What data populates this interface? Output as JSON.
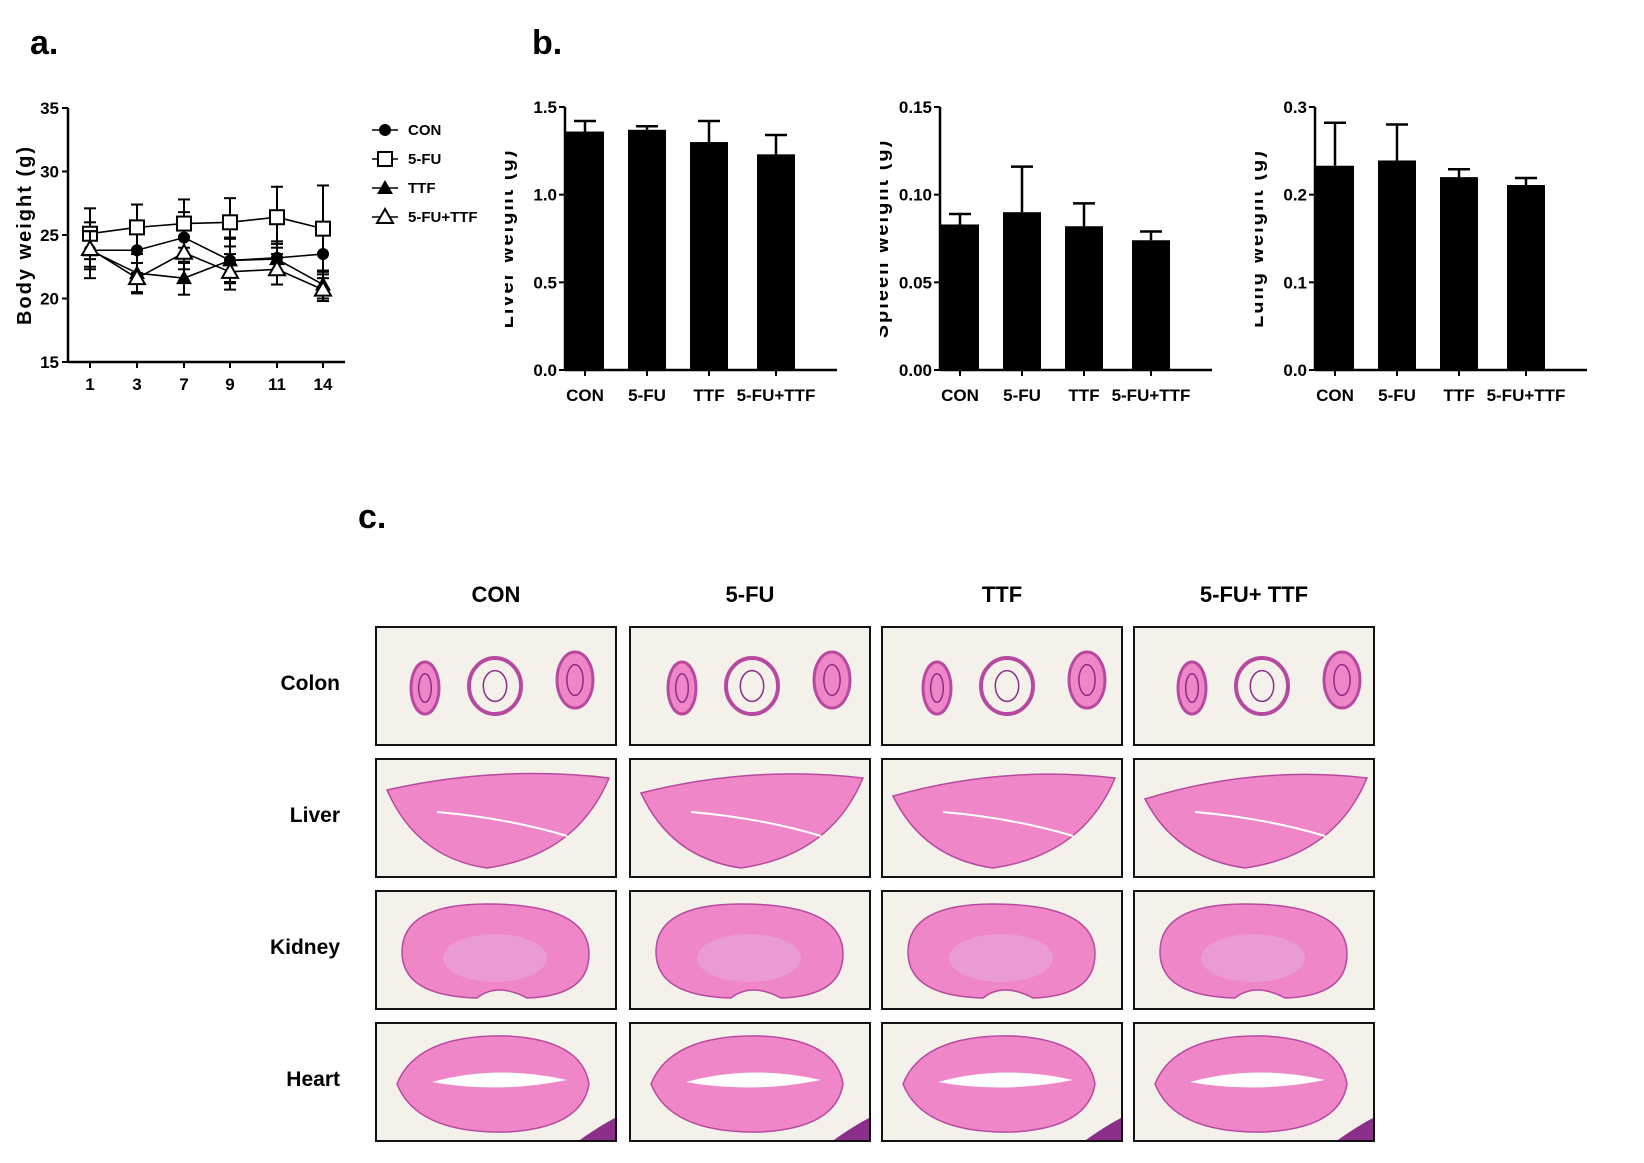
{
  "panels": {
    "a": "a.",
    "b": "b.",
    "c": "c."
  },
  "chart_data": [
    {
      "type": "line",
      "panel": "a",
      "ylabel": "Body weight (g)",
      "xlabel": "",
      "ylim": [
        15,
        35
      ],
      "yticks": [
        "15",
        "20",
        "25",
        "30",
        "35"
      ],
      "x": [
        "1",
        "3",
        "7",
        "9",
        "11",
        "14"
      ],
      "legend_position": "right",
      "series": [
        {
          "name": "CON",
          "marker": "filled-circle",
          "values": [
            23.8,
            23.8,
            24.8,
            23.0,
            23.2,
            23.5
          ],
          "errors": [
            2.2,
            1.8,
            2.0,
            1.7,
            1.3,
            1.6
          ]
        },
        {
          "name": "5-FU",
          "marker": "open-square",
          "values": [
            25.1,
            25.6,
            25.9,
            26.0,
            26.4,
            25.5
          ],
          "errors": [
            2.0,
            1.8,
            1.9,
            1.9,
            2.4,
            3.4
          ]
        },
        {
          "name": "TTF",
          "marker": "filled-triangle",
          "values": [
            23.8,
            22.0,
            21.6,
            23.0,
            23.1,
            21.1
          ],
          "errors": [
            1.5,
            1.5,
            1.3,
            1.8,
            1.2,
            1.1
          ]
        },
        {
          "name": "5-FU+TTF",
          "marker": "open-triangle",
          "values": [
            23.9,
            21.6,
            23.6,
            22.1,
            22.3,
            20.7
          ],
          "errors": [
            1.4,
            1.2,
            1.3,
            1.4,
            1.2,
            0.9
          ]
        }
      ]
    },
    {
      "type": "bar",
      "panel": "b",
      "ylabel": "Liver weight (g)",
      "categories": [
        "CON",
        "5-FU",
        "TTF",
        "5-FU+TTF"
      ],
      "values": [
        1.36,
        1.37,
        1.3,
        1.23
      ],
      "errors": [
        0.06,
        0.02,
        0.12,
        0.11
      ],
      "ylim": [
        0,
        1.5
      ],
      "yticks": [
        "0.0",
        "0.5",
        "1.0",
        "1.5"
      ]
    },
    {
      "type": "bar",
      "panel": "b",
      "ylabel": "Spleen weight (g)",
      "categories": [
        "CON",
        "5-FU",
        "TTF",
        "5-FU+TTF"
      ],
      "values": [
        0.083,
        0.09,
        0.082,
        0.074
      ],
      "errors": [
        0.006,
        0.026,
        0.013,
        0.005
      ],
      "ylim": [
        0,
        0.15
      ],
      "yticks": [
        "0.00",
        "0.05",
        "0.10",
        "0.15"
      ]
    },
    {
      "type": "bar",
      "panel": "b",
      "ylabel": "Lung weight (g)",
      "categories": [
        "CON",
        "5-FU",
        "TTF",
        "5-FU+TTF"
      ],
      "values": [
        0.233,
        0.239,
        0.22,
        0.211
      ],
      "errors": [
        0.049,
        0.041,
        0.009,
        0.008
      ],
      "ylim": [
        0,
        0.3
      ],
      "yticks": [
        "0.0",
        "0.1",
        "0.2",
        "0.3"
      ]
    }
  ],
  "histology": {
    "columns": [
      "CON",
      "5-FU",
      "TTF",
      "5-FU+ TTF"
    ],
    "rows": [
      "Colon",
      "Liver",
      "Kidney",
      "Heart"
    ],
    "colors": {
      "background": "#f3f1ea",
      "tissue": "#ef86c7",
      "tissue_edge": "#b74aa0",
      "dark_tissue": "#8c2f8a"
    }
  }
}
